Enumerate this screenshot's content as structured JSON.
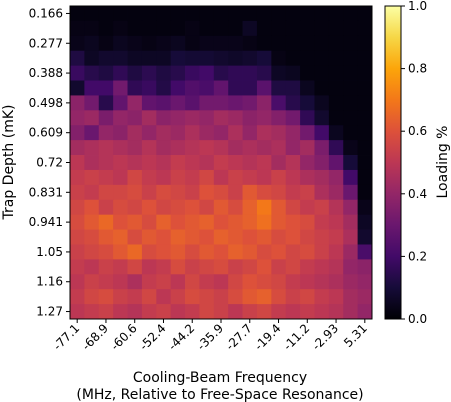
{
  "chart_data": {
    "type": "heatmap",
    "xlabel": "Cooling-Beam Frequency",
    "xlabel_sub": "(MHz, Relative to Free-Space Resonance)",
    "ylabel": "Trap Depth (mK)",
    "colorbar_label": "Loading %",
    "colormap": "inferno",
    "vmin": 0.0,
    "vmax": 1.0,
    "x_ticks": [
      "-77.1",
      "-68.9",
      "-60.6",
      "-52.4",
      "-44.2",
      "-35.9",
      "-27.7",
      "-19.4",
      "-11.2",
      "-2.93",
      "5.31"
    ],
    "y_ticks": [
      "0.166",
      "0.277",
      "0.388",
      "0.498",
      "0.609",
      "0.72",
      "0.831",
      "0.941",
      "1.05",
      "1.16",
      "1.27"
    ],
    "colorbar_ticks": [
      "0.0",
      "0.2",
      "0.4",
      "0.6",
      "0.8",
      "1.0"
    ],
    "n_cols": 21,
    "n_rows": 21,
    "values": [
      [
        0.02,
        0.02,
        0.02,
        0.02,
        0.02,
        0.02,
        0.02,
        0.02,
        0.02,
        0.02,
        0.02,
        0.02,
        0.02,
        0.02,
        0.02,
        0.02,
        0.02,
        0.02,
        0.02,
        0.02,
        0.02
      ],
      [
        0.03,
        0.03,
        0.02,
        0.03,
        0.02,
        0.02,
        0.02,
        0.02,
        0.03,
        0.02,
        0.02,
        0.02,
        0.06,
        0.02,
        0.02,
        0.02,
        0.02,
        0.02,
        0.02,
        0.02,
        0.02
      ],
      [
        0.04,
        0.05,
        0.03,
        0.05,
        0.04,
        0.03,
        0.04,
        0.05,
        0.03,
        0.04,
        0.04,
        0.04,
        0.03,
        0.02,
        0.02,
        0.02,
        0.02,
        0.02,
        0.02,
        0.02,
        0.02
      ],
      [
        0.12,
        0.06,
        0.08,
        0.08,
        0.06,
        0.06,
        0.06,
        0.1,
        0.09,
        0.09,
        0.08,
        0.07,
        0.08,
        0.1,
        0.03,
        0.02,
        0.02,
        0.02,
        0.02,
        0.02,
        0.02
      ],
      [
        0.18,
        0.14,
        0.12,
        0.16,
        0.12,
        0.15,
        0.12,
        0.14,
        0.18,
        0.2,
        0.14,
        0.16,
        0.16,
        0.14,
        0.06,
        0.05,
        0.02,
        0.02,
        0.02,
        0.02,
        0.02
      ],
      [
        0.08,
        0.2,
        0.2,
        0.32,
        0.16,
        0.18,
        0.13,
        0.2,
        0.24,
        0.22,
        0.28,
        0.16,
        0.16,
        0.26,
        0.12,
        0.12,
        0.05,
        0.02,
        0.02,
        0.02,
        0.02
      ],
      [
        0.38,
        0.32,
        0.14,
        0.28,
        0.4,
        0.28,
        0.26,
        0.3,
        0.26,
        0.32,
        0.32,
        0.3,
        0.32,
        0.38,
        0.22,
        0.14,
        0.1,
        0.05,
        0.02,
        0.02,
        0.02
      ],
      [
        0.4,
        0.42,
        0.34,
        0.4,
        0.38,
        0.44,
        0.38,
        0.4,
        0.42,
        0.4,
        0.44,
        0.42,
        0.38,
        0.4,
        0.36,
        0.32,
        0.16,
        0.08,
        0.02,
        0.02,
        0.02
      ],
      [
        0.36,
        0.3,
        0.4,
        0.38,
        0.44,
        0.4,
        0.44,
        0.42,
        0.46,
        0.42,
        0.4,
        0.46,
        0.4,
        0.46,
        0.44,
        0.4,
        0.32,
        0.2,
        0.05,
        0.02,
        0.02
      ],
      [
        0.44,
        0.46,
        0.48,
        0.46,
        0.44,
        0.48,
        0.44,
        0.46,
        0.48,
        0.5,
        0.48,
        0.44,
        0.46,
        0.44,
        0.46,
        0.4,
        0.44,
        0.34,
        0.16,
        0.04,
        0.02
      ],
      [
        0.5,
        0.46,
        0.48,
        0.5,
        0.48,
        0.5,
        0.48,
        0.52,
        0.5,
        0.48,
        0.52,
        0.5,
        0.48,
        0.5,
        0.44,
        0.48,
        0.4,
        0.36,
        0.28,
        0.1,
        0.02
      ],
      [
        0.52,
        0.54,
        0.52,
        0.5,
        0.56,
        0.52,
        0.5,
        0.54,
        0.52,
        0.56,
        0.5,
        0.54,
        0.52,
        0.5,
        0.54,
        0.5,
        0.46,
        0.44,
        0.4,
        0.2,
        0.02
      ],
      [
        0.54,
        0.52,
        0.56,
        0.56,
        0.58,
        0.54,
        0.58,
        0.56,
        0.54,
        0.6,
        0.58,
        0.54,
        0.62,
        0.58,
        0.56,
        0.52,
        0.54,
        0.46,
        0.42,
        0.3,
        0.02
      ],
      [
        0.56,
        0.6,
        0.54,
        0.58,
        0.56,
        0.6,
        0.56,
        0.58,
        0.6,
        0.56,
        0.62,
        0.58,
        0.64,
        0.7,
        0.62,
        0.56,
        0.52,
        0.54,
        0.48,
        0.4,
        0.04
      ],
      [
        0.58,
        0.62,
        0.66,
        0.6,
        0.62,
        0.58,
        0.64,
        0.6,
        0.62,
        0.64,
        0.6,
        0.62,
        0.64,
        0.68,
        0.62,
        0.6,
        0.58,
        0.52,
        0.5,
        0.44,
        0.06
      ],
      [
        0.56,
        0.58,
        0.62,
        0.64,
        0.58,
        0.62,
        0.6,
        0.64,
        0.62,
        0.6,
        0.64,
        0.62,
        0.6,
        0.62,
        0.58,
        0.6,
        0.56,
        0.54,
        0.52,
        0.46,
        0.08
      ],
      [
        0.54,
        0.56,
        0.58,
        0.62,
        0.66,
        0.58,
        0.6,
        0.62,
        0.58,
        0.62,
        0.6,
        0.64,
        0.62,
        0.58,
        0.6,
        0.56,
        0.58,
        0.54,
        0.5,
        0.42,
        0.22
      ],
      [
        0.52,
        0.5,
        0.54,
        0.52,
        0.56,
        0.5,
        0.52,
        0.58,
        0.54,
        0.56,
        0.58,
        0.54,
        0.56,
        0.6,
        0.54,
        0.56,
        0.52,
        0.5,
        0.48,
        0.4,
        0.38
      ],
      [
        0.5,
        0.54,
        0.52,
        0.5,
        0.46,
        0.52,
        0.54,
        0.5,
        0.56,
        0.52,
        0.5,
        0.56,
        0.6,
        0.58,
        0.56,
        0.52,
        0.5,
        0.48,
        0.46,
        0.42,
        0.4
      ],
      [
        0.52,
        0.56,
        0.58,
        0.54,
        0.52,
        0.56,
        0.5,
        0.54,
        0.58,
        0.56,
        0.54,
        0.58,
        0.62,
        0.64,
        0.58,
        0.54,
        0.56,
        0.52,
        0.5,
        0.44,
        0.42
      ],
      [
        0.5,
        0.52,
        0.54,
        0.5,
        0.48,
        0.52,
        0.54,
        0.5,
        0.52,
        0.56,
        0.54,
        0.5,
        0.54,
        0.56,
        0.52,
        0.5,
        0.52,
        0.5,
        0.48,
        0.44,
        0.4
      ]
    ]
  }
}
